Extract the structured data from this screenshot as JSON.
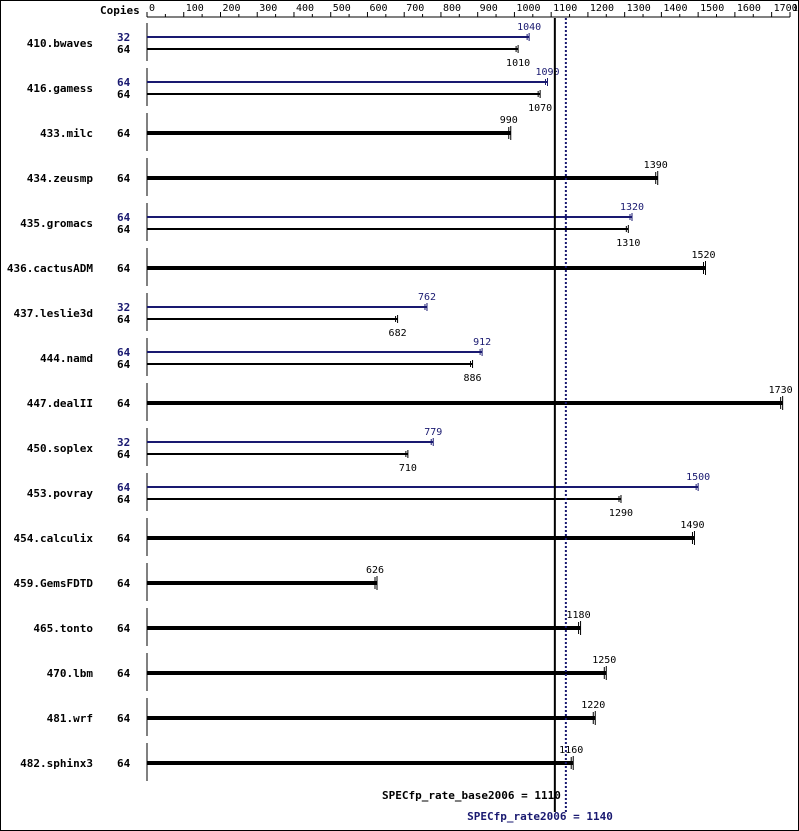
{
  "chart_data": {
    "type": "bar",
    "orientation": "horizontal",
    "title": "",
    "x_header": "Copies",
    "xlim": [
      0,
      1750
    ],
    "x_ticks": [
      0,
      100,
      200,
      300,
      400,
      500,
      600,
      700,
      800,
      900,
      1000,
      1100,
      1200,
      1300,
      1400,
      1500,
      1600,
      1700,
      1750
    ],
    "colors": {
      "base": "#000000",
      "peak": "#191970"
    },
    "benchmarks": [
      {
        "name": "410.bwaves",
        "peak_copies": "32",
        "peak": 1040,
        "base_copies": "64",
        "base": 1010
      },
      {
        "name": "416.gamess",
        "peak_copies": "64",
        "peak": 1090,
        "base_copies": "64",
        "base": 1070
      },
      {
        "name": "433.milc",
        "base_copies": "64",
        "base": 990
      },
      {
        "name": "434.zeusmp",
        "base_copies": "64",
        "base": 1390
      },
      {
        "name": "435.gromacs",
        "peak_copies": "64",
        "peak": 1320,
        "base_copies": "64",
        "base": 1310
      },
      {
        "name": "436.cactusADM",
        "base_copies": "64",
        "base": 1520
      },
      {
        "name": "437.leslie3d",
        "peak_copies": "32",
        "peak": 762,
        "base_copies": "64",
        "base": 682
      },
      {
        "name": "444.namd",
        "peak_copies": "64",
        "peak": 912,
        "base_copies": "64",
        "base": 886
      },
      {
        "name": "447.dealII",
        "base_copies": "64",
        "base": 1730
      },
      {
        "name": "450.soplex",
        "peak_copies": "32",
        "peak": 779,
        "base_copies": "64",
        "base": 710
      },
      {
        "name": "453.povray",
        "peak_copies": "64",
        "peak": 1500,
        "base_copies": "64",
        "base": 1290
      },
      {
        "name": "454.calculix",
        "base_copies": "64",
        "base": 1490
      },
      {
        "name": "459.GemsFDTD",
        "base_copies": "64",
        "base": 626
      },
      {
        "name": "465.tonto",
        "base_copies": "64",
        "base": 1180
      },
      {
        "name": "470.lbm",
        "base_copies": "64",
        "base": 1250
      },
      {
        "name": "481.wrf",
        "base_copies": "64",
        "base": 1220
      },
      {
        "name": "482.sphinx3",
        "base_copies": "64",
        "base": 1160
      }
    ],
    "reference_lines": [
      {
        "label": "SPECfp_rate_base2006 = 1110",
        "value": 1110,
        "style": "solid",
        "color": "#000000"
      },
      {
        "label": "SPECfp_rate2006 = 1140",
        "value": 1140,
        "style": "dotted",
        "color": "#191970"
      }
    ]
  }
}
